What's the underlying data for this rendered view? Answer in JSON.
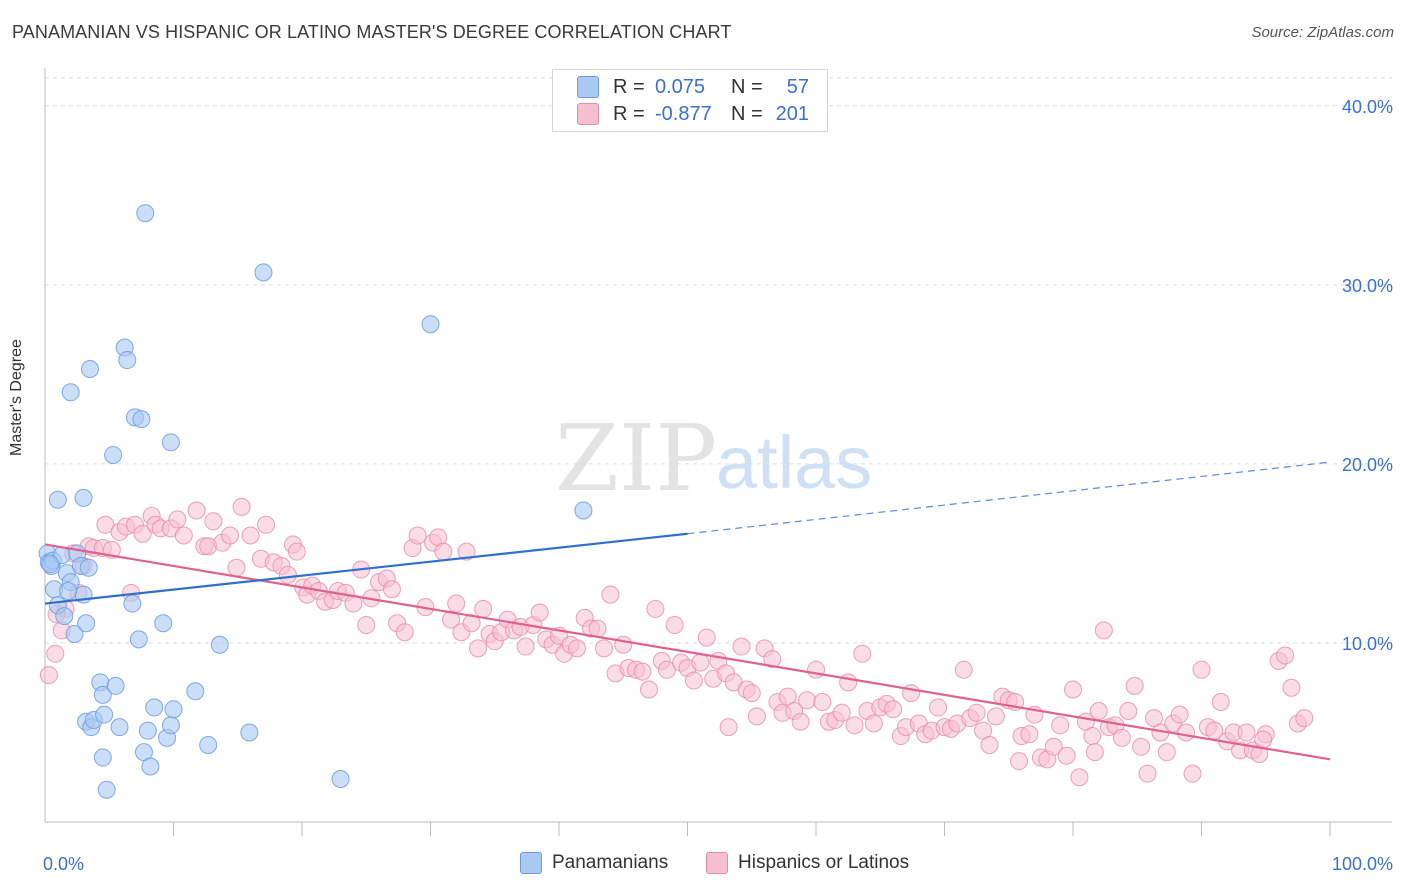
{
  "title": "PANAMANIAN VS HISPANIC OR LATINO MASTER'S DEGREE CORRELATION CHART",
  "source": "Source: ZipAtlas.com",
  "watermark": {
    "zip": "ZIP",
    "atlas": "atlas"
  },
  "legend": {
    "rows": [
      {
        "r_label": "R =",
        "r_value": "0.075",
        "n_label": "N =",
        "n_value": "57",
        "color": "#a9c8f2",
        "border": "#6b9be0"
      },
      {
        "r_label": "R =",
        "r_value": "-0.877",
        "n_label": "N =",
        "n_value": "201",
        "color": "#f6bfd1",
        "border": "#e88aa9"
      }
    ]
  },
  "bottom_legend": [
    "Panamanians",
    "Hispanics or Latinos"
  ],
  "colors": {
    "blue_fill": "#a9c8f2",
    "blue_stroke": "#6b9be0",
    "blue_line": "#2f6fd0",
    "pink_fill": "#f6bfd1",
    "pink_stroke": "#e88aa9",
    "pink_line": "#e0608f",
    "axis_text": "#3a6fd6",
    "grid": "#dcdcdc"
  },
  "chart_data": {
    "type": "scatter",
    "title": "PANAMANIAN VS HISPANIC OR LATINO MASTER'S DEGREE CORRELATION CHART",
    "xlabel": "",
    "ylabel": "Master's Degree",
    "xlim": [
      0,
      100
    ],
    "ylim": [
      0,
      42
    ],
    "x_tick_labels": [
      "0.0%",
      "100.0%"
    ],
    "y_ticks": [
      10,
      20,
      30,
      40
    ],
    "y_tick_labels": [
      "10.0%",
      "20.0%",
      "30.0%",
      "40.0%"
    ],
    "grid": true,
    "series": [
      {
        "name": "Panamanians",
        "trend": {
          "x0": 0,
          "y0": 12.2,
          "x1": 50,
          "y1": 16.1,
          "dashed_to": 100,
          "dashed_y": 20.1
        },
        "points": [
          [
            0.2,
            15.0
          ],
          [
            0.3,
            14.5
          ],
          [
            0.5,
            14.3
          ],
          [
            0.6,
            14.6
          ],
          [
            0.7,
            13.0
          ],
          [
            1.0,
            12.1
          ],
          [
            1.0,
            18.0
          ],
          [
            1.3,
            14.9
          ],
          [
            1.5,
            11.5
          ],
          [
            1.7,
            13.9
          ],
          [
            2.0,
            24.0
          ],
          [
            2.0,
            13.4
          ],
          [
            2.3,
            10.5
          ],
          [
            2.5,
            15.0
          ],
          [
            2.8,
            14.3
          ],
          [
            3.0,
            12.7
          ],
          [
            3.0,
            18.1
          ],
          [
            3.2,
            11.1
          ],
          [
            3.5,
            25.3
          ],
          [
            3.2,
            5.6
          ],
          [
            3.6,
            5.3
          ],
          [
            3.8,
            5.7
          ],
          [
            4.3,
            7.8
          ],
          [
            4.5,
            7.1
          ],
          [
            4.5,
            3.6
          ],
          [
            4.6,
            6.0
          ],
          [
            4.8,
            1.8
          ],
          [
            5.3,
            20.5
          ],
          [
            5.5,
            7.6
          ],
          [
            5.8,
            5.3
          ],
          [
            6.2,
            26.5
          ],
          [
            6.4,
            25.8
          ],
          [
            6.8,
            12.2
          ],
          [
            7.0,
            22.6
          ],
          [
            7.3,
            10.2
          ],
          [
            7.5,
            22.5
          ],
          [
            7.7,
            3.9
          ],
          [
            7.8,
            34.0
          ],
          [
            8.0,
            5.1
          ],
          [
            8.2,
            3.1
          ],
          [
            8.5,
            6.4
          ],
          [
            9.2,
            11.1
          ],
          [
            9.5,
            4.7
          ],
          [
            9.8,
            21.2
          ],
          [
            9.8,
            5.4
          ],
          [
            10.0,
            6.3
          ],
          [
            11.7,
            7.3
          ],
          [
            12.7,
            4.3
          ],
          [
            13.6,
            9.9
          ],
          [
            15.9,
            5.0
          ],
          [
            17.0,
            30.7
          ],
          [
            23.0,
            2.4
          ],
          [
            30.0,
            27.8
          ],
          [
            41.9,
            17.4
          ],
          [
            0.4,
            14.4
          ],
          [
            1.8,
            12.9
          ],
          [
            3.4,
            14.2
          ]
        ]
      },
      {
        "name": "Hispanics or Latinos",
        "trend": {
          "x0": 0,
          "y0": 15.5,
          "x1": 100,
          "y1": 3.5
        },
        "points": [
          [
            0.3,
            8.2
          ],
          [
            0.8,
            9.4
          ],
          [
            1.3,
            10.7
          ],
          [
            1.6,
            11.9
          ],
          [
            2.2,
            15.0
          ],
          [
            2.6,
            12.8
          ],
          [
            3.0,
            14.3
          ],
          [
            3.4,
            15.4
          ],
          [
            3.8,
            15.3
          ],
          [
            4.5,
            15.3
          ],
          [
            4.7,
            16.6
          ],
          [
            5.2,
            15.2
          ],
          [
            5.8,
            16.2
          ],
          [
            6.3,
            16.5
          ],
          [
            6.7,
            12.8
          ],
          [
            7.0,
            16.6
          ],
          [
            7.6,
            16.1
          ],
          [
            8.3,
            17.1
          ],
          [
            8.6,
            16.6
          ],
          [
            9.0,
            16.4
          ],
          [
            9.8,
            16.4
          ],
          [
            10.3,
            16.9
          ],
          [
            10.8,
            16.0
          ],
          [
            11.8,
            17.4
          ],
          [
            12.4,
            15.4
          ],
          [
            12.7,
            15.4
          ],
          [
            13.1,
            16.8
          ],
          [
            13.8,
            15.6
          ],
          [
            14.4,
            16.0
          ],
          [
            14.9,
            14.2
          ],
          [
            15.3,
            17.6
          ],
          [
            16.0,
            16.0
          ],
          [
            16.8,
            14.7
          ],
          [
            17.2,
            16.6
          ],
          [
            17.8,
            14.5
          ],
          [
            18.4,
            14.3
          ],
          [
            18.9,
            13.8
          ],
          [
            19.3,
            15.5
          ],
          [
            19.6,
            15.1
          ],
          [
            20.1,
            13.1
          ],
          [
            20.4,
            12.7
          ],
          [
            20.8,
            13.2
          ],
          [
            21.3,
            12.9
          ],
          [
            21.8,
            12.3
          ],
          [
            22.4,
            12.4
          ],
          [
            22.8,
            12.9
          ],
          [
            23.4,
            12.8
          ],
          [
            24.0,
            12.2
          ],
          [
            24.6,
            14.1
          ],
          [
            25.0,
            11.0
          ],
          [
            25.4,
            12.5
          ],
          [
            26.0,
            13.4
          ],
          [
            26.6,
            13.6
          ],
          [
            27.0,
            13.0
          ],
          [
            27.4,
            11.1
          ],
          [
            28.0,
            10.6
          ],
          [
            28.6,
            15.3
          ],
          [
            29.0,
            16.0
          ],
          [
            29.6,
            12.0
          ],
          [
            30.2,
            15.6
          ],
          [
            30.6,
            15.9
          ],
          [
            31.0,
            15.1
          ],
          [
            31.6,
            11.3
          ],
          [
            32.0,
            12.2
          ],
          [
            32.4,
            10.6
          ],
          [
            32.8,
            15.1
          ],
          [
            33.2,
            11.1
          ],
          [
            33.7,
            9.7
          ],
          [
            34.1,
            11.9
          ],
          [
            34.6,
            10.5
          ],
          [
            35.0,
            10.1
          ],
          [
            35.5,
            10.6
          ],
          [
            36.0,
            11.3
          ],
          [
            36.5,
            10.7
          ],
          [
            37.0,
            10.9
          ],
          [
            37.4,
            9.8
          ],
          [
            38.0,
            11.0
          ],
          [
            38.5,
            11.7
          ],
          [
            39.0,
            10.2
          ],
          [
            39.5,
            9.9
          ],
          [
            40.0,
            10.4
          ],
          [
            40.4,
            9.4
          ],
          [
            40.9,
            9.9
          ],
          [
            41.4,
            9.7
          ],
          [
            42.0,
            11.4
          ],
          [
            42.5,
            10.8
          ],
          [
            43.0,
            10.8
          ],
          [
            43.5,
            9.7
          ],
          [
            44.0,
            12.7
          ],
          [
            44.4,
            8.3
          ],
          [
            45.0,
            9.9
          ],
          [
            45.4,
            8.6
          ],
          [
            46.0,
            8.5
          ],
          [
            46.5,
            8.4
          ],
          [
            47.0,
            7.4
          ],
          [
            47.5,
            11.9
          ],
          [
            48.0,
            9.0
          ],
          [
            48.4,
            8.5
          ],
          [
            49.0,
            11.0
          ],
          [
            49.5,
            8.9
          ],
          [
            50.0,
            8.6
          ],
          [
            50.5,
            7.9
          ],
          [
            51.0,
            8.9
          ],
          [
            51.5,
            10.3
          ],
          [
            52.0,
            8.0
          ],
          [
            52.4,
            9.0
          ],
          [
            53.0,
            8.3
          ],
          [
            53.6,
            7.8
          ],
          [
            54.2,
            9.8
          ],
          [
            54.6,
            7.4
          ],
          [
            55.0,
            7.2
          ],
          [
            55.4,
            5.9
          ],
          [
            56.0,
            9.7
          ],
          [
            56.6,
            9.1
          ],
          [
            57.0,
            6.7
          ],
          [
            57.4,
            6.1
          ],
          [
            57.8,
            7.0
          ],
          [
            58.3,
            6.2
          ],
          [
            58.8,
            5.6
          ],
          [
            59.3,
            6.8
          ],
          [
            60.0,
            8.5
          ],
          [
            60.5,
            6.7
          ],
          [
            61.0,
            5.6
          ],
          [
            61.5,
            5.7
          ],
          [
            62.0,
            6.1
          ],
          [
            62.5,
            7.8
          ],
          [
            63.0,
            5.4
          ],
          [
            63.6,
            9.4
          ],
          [
            64.0,
            6.2
          ],
          [
            64.5,
            5.5
          ],
          [
            65.0,
            6.4
          ],
          [
            65.5,
            6.6
          ],
          [
            66.0,
            6.3
          ],
          [
            66.6,
            4.8
          ],
          [
            67.0,
            5.3
          ],
          [
            67.4,
            7.2
          ],
          [
            68.0,
            5.5
          ],
          [
            68.5,
            4.9
          ],
          [
            69.0,
            5.1
          ],
          [
            69.5,
            6.4
          ],
          [
            70.0,
            5.3
          ],
          [
            70.5,
            5.2
          ],
          [
            71.0,
            5.5
          ],
          [
            71.5,
            8.5
          ],
          [
            72.0,
            5.8
          ],
          [
            72.5,
            6.1
          ],
          [
            73.0,
            5.1
          ],
          [
            73.5,
            4.3
          ],
          [
            74.0,
            5.9
          ],
          [
            74.5,
            7.0
          ],
          [
            75.0,
            6.8
          ],
          [
            75.5,
            6.7
          ],
          [
            76.0,
            4.8
          ],
          [
            76.6,
            4.9
          ],
          [
            77.0,
            6.0
          ],
          [
            77.5,
            3.6
          ],
          [
            78.0,
            3.5
          ],
          [
            78.5,
            4.2
          ],
          [
            79.0,
            5.4
          ],
          [
            79.5,
            3.7
          ],
          [
            80.0,
            7.4
          ],
          [
            80.5,
            2.5
          ],
          [
            81.0,
            5.6
          ],
          [
            81.5,
            4.8
          ],
          [
            82.0,
            6.2
          ],
          [
            82.4,
            10.7
          ],
          [
            82.8,
            5.3
          ],
          [
            83.3,
            5.4
          ],
          [
            83.8,
            4.7
          ],
          [
            84.3,
            6.2
          ],
          [
            84.8,
            7.6
          ],
          [
            85.3,
            4.2
          ],
          [
            85.8,
            2.7
          ],
          [
            86.3,
            5.8
          ],
          [
            86.8,
            5.0
          ],
          [
            87.3,
            3.9
          ],
          [
            87.8,
            5.5
          ],
          [
            88.3,
            6.0
          ],
          [
            88.8,
            5.0
          ],
          [
            89.3,
            2.7
          ],
          [
            90.0,
            8.5
          ],
          [
            90.5,
            5.3
          ],
          [
            91.0,
            5.1
          ],
          [
            91.5,
            6.7
          ],
          [
            92.0,
            4.5
          ],
          [
            92.5,
            5.0
          ],
          [
            93.0,
            4.0
          ],
          [
            93.5,
            5.0
          ],
          [
            94.0,
            4.0
          ],
          [
            94.5,
            3.8
          ],
          [
            95.0,
            4.9
          ],
          [
            96.0,
            9.0
          ],
          [
            96.5,
            9.3
          ],
          [
            97.0,
            7.5
          ],
          [
            97.5,
            5.5
          ],
          [
            98.0,
            5.8
          ],
          [
            75.8,
            3.4
          ],
          [
            81.7,
            3.9
          ],
          [
            94.8,
            4.6
          ],
          [
            53.2,
            5.3
          ],
          [
            0.9,
            11.6
          ]
        ]
      }
    ]
  }
}
